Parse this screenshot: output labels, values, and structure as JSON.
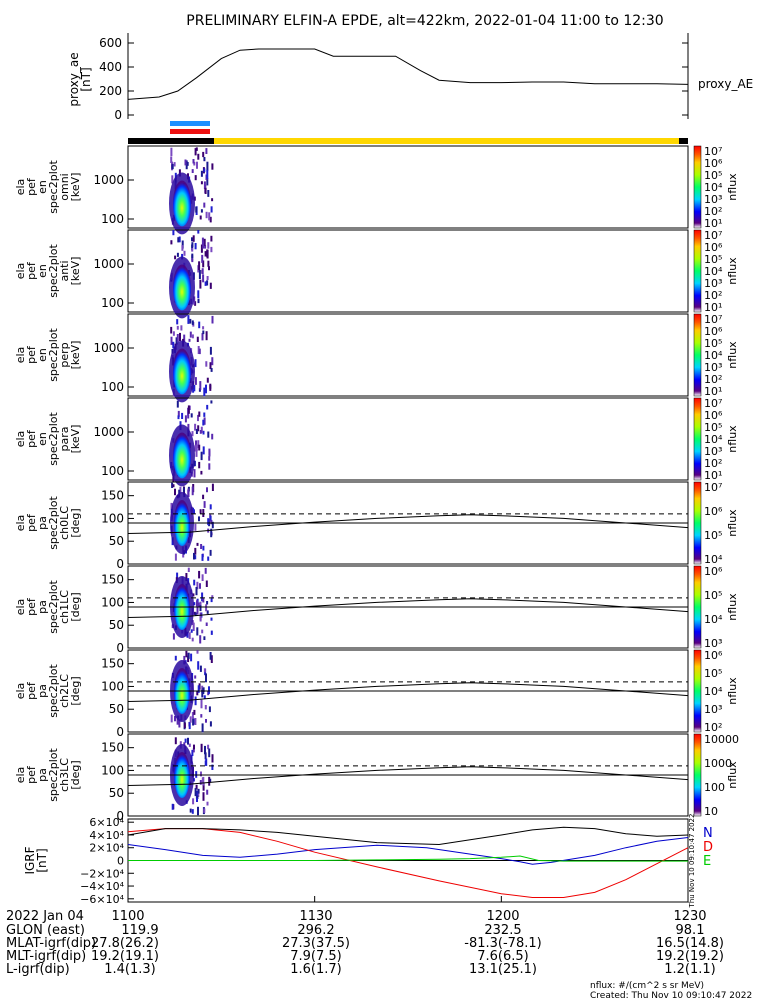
{
  "title": "PRELIMINARY ELFIN-A EPDE, alt=422km, 2022-01-04 11:00 to 12:30",
  "bar_colors": {
    "blue": "#1e90ff",
    "red": "#ee1111",
    "yellow": "#ffd700",
    "black": "#000000"
  },
  "panels": [
    {
      "id": "proxy_ae",
      "ylabel": [
        "proxy_ae",
        "[nT]"
      ],
      "yticks": [
        "600",
        "400",
        "200",
        "0"
      ],
      "right_label": "proxy_AE"
    },
    {
      "id": "omni",
      "ylabel": [
        "ela",
        "pef",
        "en",
        "spec2plot",
        "omni",
        "[keV]"
      ],
      "yticks": [
        "1000",
        "100"
      ],
      "cbar_ticks": [
        "10⁷",
        "10⁶",
        "10⁵",
        "10⁴",
        "10³",
        "10²",
        "10¹"
      ],
      "cbar_label": "nflux"
    },
    {
      "id": "anti",
      "ylabel": [
        "ela",
        "pef",
        "en",
        "spec2plot",
        "anti",
        "[keV]"
      ],
      "yticks": [
        "1000",
        "100"
      ],
      "cbar_ticks": [
        "10⁷",
        "10⁶",
        "10⁵",
        "10⁴",
        "10³",
        "10²",
        "10¹"
      ],
      "cbar_label": "nflux"
    },
    {
      "id": "perp",
      "ylabel": [
        "ela",
        "pef",
        "en",
        "spec2plot",
        "perp",
        "[keV]"
      ],
      "yticks": [
        "1000",
        "100"
      ],
      "cbar_ticks": [
        "10⁷",
        "10⁶",
        "10⁵",
        "10⁴",
        "10³",
        "10²",
        "10¹"
      ],
      "cbar_label": "nflux"
    },
    {
      "id": "para",
      "ylabel": [
        "ela",
        "pef",
        "en",
        "spec2plot",
        "para",
        "[keV]"
      ],
      "yticks": [
        "1000",
        "100"
      ],
      "cbar_ticks": [
        "10⁷",
        "10⁶",
        "10⁵",
        "10⁴",
        "10³",
        "10²",
        "10¹"
      ],
      "cbar_label": "nflux"
    },
    {
      "id": "ch0",
      "ylabel": [
        "ela",
        "pef",
        "pa",
        "spec2plot",
        "ch0LC",
        "[deg]"
      ],
      "yticks": [
        "150",
        "100",
        "50",
        "0"
      ],
      "cbar_ticks": [
        "10⁷",
        "10⁶",
        "10⁵",
        "10⁴"
      ],
      "cbar_label": "nflux"
    },
    {
      "id": "ch1",
      "ylabel": [
        "ela",
        "pef",
        "pa",
        "spec2plot",
        "ch1LC",
        "[deg]"
      ],
      "yticks": [
        "150",
        "100",
        "50",
        "0"
      ],
      "cbar_ticks": [
        "10⁶",
        "10⁵",
        "10⁴",
        "10³"
      ],
      "cbar_label": "nflux"
    },
    {
      "id": "ch2",
      "ylabel": [
        "ela",
        "pef",
        "pa",
        "spec2plot",
        "ch2LC",
        "[deg]"
      ],
      "yticks": [
        "150",
        "100",
        "50",
        "0"
      ],
      "cbar_ticks": [
        "10⁶",
        "10⁵",
        "10⁴",
        "10³",
        "10²"
      ],
      "cbar_label": "nflux"
    },
    {
      "id": "ch3",
      "ylabel": [
        "ela",
        "pef",
        "pa",
        "spec2plot",
        "ch3LC",
        "[deg]"
      ],
      "yticks": [
        "150",
        "100",
        "50",
        "0"
      ],
      "cbar_ticks": [
        "10000",
        "1000",
        "100",
        "10"
      ],
      "cbar_label": "nflux"
    },
    {
      "id": "igrf",
      "ylabel": [
        "IGRF",
        "[nT]"
      ],
      "yticks": [
        "6×10⁴",
        "4×10⁴",
        "2×10⁴",
        "0",
        "−2×10⁴",
        "−4×10⁴",
        "−6×10⁴"
      ],
      "legend": [
        "N",
        "D",
        "E"
      ],
      "side_text": "Thu Nov 10 09:10:47 2022"
    }
  ],
  "chart_data": {
    "type": "line",
    "x_unit": "UT (HHMM)",
    "x_ticks": [
      "1100",
      "1130",
      "1200",
      "1230"
    ],
    "proxy_ae": {
      "ylim": [
        0,
        650
      ],
      "x": [
        1100,
        1105,
        1108,
        1111,
        1115,
        1118,
        1121,
        1124,
        1127,
        1130,
        1133,
        1135,
        1140,
        1143,
        1147,
        1150,
        1155,
        1200,
        1205,
        1210,
        1215,
        1220,
        1225,
        1230
      ],
      "y": [
        130,
        150,
        200,
        310,
        470,
        540,
        550,
        550,
        550,
        550,
        490,
        490,
        490,
        490,
        370,
        290,
        270,
        270,
        275,
        275,
        260,
        260,
        260,
        255
      ]
    },
    "pitch_angle_panels": {
      "ylim": [
        0,
        180
      ],
      "dashed_y": 110,
      "lower_line_y": 90,
      "curve_x": [
        1100,
        1110,
        1120,
        1130,
        1140,
        1150,
        1155,
        1200,
        1210,
        1220,
        1230
      ],
      "curve_y": [
        67,
        70,
        82,
        92,
        100,
        106,
        108,
        106,
        100,
        90,
        80
      ]
    },
    "igrf": {
      "ylim": [
        -65000,
        65000
      ],
      "series": [
        {
          "name": "N",
          "color": "#0000cc",
          "x": [
            1100,
            1106,
            1112,
            1118,
            1124,
            1130,
            1140,
            1148,
            1155,
            1200,
            1203,
            1205,
            1208,
            1215,
            1220,
            1225,
            1230
          ],
          "y": [
            25000,
            17000,
            8000,
            5000,
            10000,
            17000,
            24000,
            20000,
            10000,
            3000,
            -2000,
            -6000,
            -3000,
            8000,
            20000,
            30000,
            36000
          ]
        },
        {
          "name": "D",
          "color": "#ee0000",
          "x": [
            1100,
            1106,
            1112,
            1118,
            1124,
            1130,
            1140,
            1150,
            1200,
            1205,
            1210,
            1215,
            1220,
            1225,
            1230
          ],
          "y": [
            45000,
            50000,
            50000,
            44000,
            30000,
            13000,
            -10000,
            -32000,
            -52000,
            -58000,
            -58000,
            -50000,
            -30000,
            -5000,
            20000
          ]
        },
        {
          "name": "E",
          "color": "#00cc00",
          "x": [
            1100,
            1110,
            1120,
            1130,
            1140,
            1150,
            1155,
            1200,
            1203,
            1206,
            1210,
            1220,
            1230
          ],
          "y": [
            0,
            0,
            0,
            0,
            1000,
            2000,
            3000,
            5000,
            7000,
            0,
            -1000,
            -1000,
            -1000
          ]
        },
        {
          "name": "total",
          "color": "#000000",
          "x": [
            1100,
            1106,
            1112,
            1118,
            1124,
            1130,
            1140,
            1150,
            1200,
            1205,
            1210,
            1215,
            1220,
            1225,
            1230
          ],
          "y": [
            40000,
            50000,
            50000,
            48000,
            44000,
            38000,
            28000,
            25000,
            40000,
            48000,
            52000,
            50000,
            42000,
            38000,
            40000
          ]
        }
      ]
    }
  },
  "footer": {
    "rows": [
      {
        "label": "2022 Jan 04",
        "values": [
          "1100",
          "1130",
          "1200",
          "1230"
        ]
      },
      {
        "label": "GLON (east)",
        "values": [
          "119.9",
          "296.2",
          "232.5",
          "98.1"
        ]
      },
      {
        "label": "MLAT-igrf(dip)",
        "values": [
          "27.8(26.2)",
          "27.3(37.5)",
          "-81.3(-78.1)",
          "16.5(14.8)"
        ]
      },
      {
        "label": "MLT-igrf(dip)",
        "values": [
          "19.2(19.1)",
          "7.9(7.5)",
          "7.6(6.5)",
          "19.2(19.2)"
        ]
      },
      {
        "label": "L-igrf(dip)",
        "values": [
          "1.4(1.3)",
          "1.6(1.7)",
          "13.1(25.1)",
          "1.2(1.1)"
        ]
      }
    ],
    "units_note": "nflux: #/(cm^2 s sr MeV)",
    "created": "Created: Thu Nov 10 09:10:47 2022"
  }
}
